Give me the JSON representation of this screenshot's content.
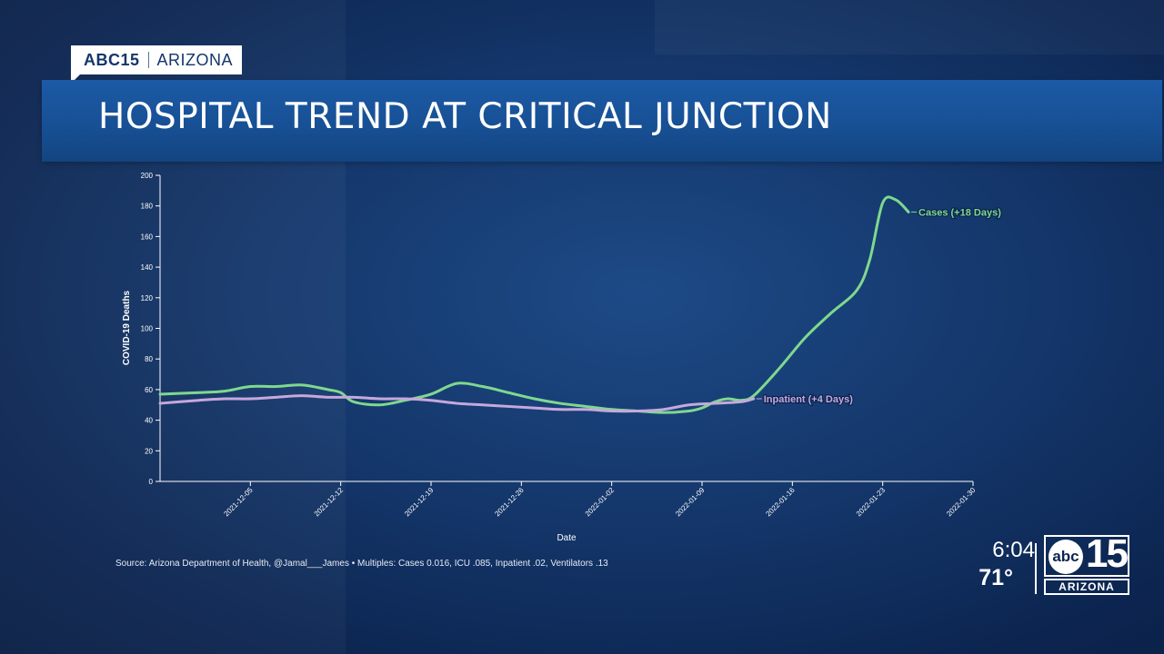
{
  "network_bug": {
    "brand": "ABC15",
    "region": "ARIZONA"
  },
  "headline": "HOSPITAL TREND AT CRITICAL JUNCTION",
  "chart_data": {
    "type": "line",
    "xlabel": "Date",
    "ylabel": "COVID-19 Deaths",
    "ylim": [
      0,
      200
    ],
    "yticks": [
      0,
      20,
      40,
      60,
      80,
      100,
      120,
      140,
      160,
      180,
      200
    ],
    "xticks": [
      "2021-12-05",
      "2021-12-12",
      "2021-12-19",
      "2021-12-26",
      "2022-01-02",
      "2022-01-09",
      "2022-01-16",
      "2022-01-23",
      "2022-01-30"
    ],
    "xlim": [
      "2021-11-28",
      "2022-01-30"
    ],
    "grid": false,
    "series": [
      {
        "name": "Cases (+18 Days)",
        "color": "#7fd88f",
        "points": [
          [
            "2021-11-28",
            57
          ],
          [
            "2021-12-01",
            58
          ],
          [
            "2021-12-03",
            59
          ],
          [
            "2021-12-05",
            62
          ],
          [
            "2021-12-07",
            62
          ],
          [
            "2021-12-09",
            63
          ],
          [
            "2021-12-11",
            60
          ],
          [
            "2021-12-12",
            58
          ],
          [
            "2021-12-13",
            52
          ],
          [
            "2021-12-15",
            50
          ],
          [
            "2021-12-17",
            53
          ],
          [
            "2021-12-19",
            57
          ],
          [
            "2021-12-21",
            64
          ],
          [
            "2021-12-23",
            62
          ],
          [
            "2021-12-25",
            58
          ],
          [
            "2021-12-27",
            54
          ],
          [
            "2021-12-29",
            51
          ],
          [
            "2021-12-31",
            49
          ],
          [
            "2022-01-02",
            47
          ],
          [
            "2022-01-04",
            46
          ],
          [
            "2022-01-06",
            45
          ],
          [
            "2022-01-08",
            46
          ],
          [
            "2022-01-09",
            48
          ],
          [
            "2022-01-10",
            52
          ],
          [
            "2022-01-11",
            54
          ],
          [
            "2022-01-12",
            53
          ],
          [
            "2022-01-13",
            56
          ],
          [
            "2022-01-15",
            74
          ],
          [
            "2022-01-17",
            94
          ],
          [
            "2022-01-19",
            110
          ],
          [
            "2022-01-21",
            125
          ],
          [
            "2022-01-22",
            145
          ],
          [
            "2022-01-23",
            182
          ],
          [
            "2022-01-24",
            184
          ],
          [
            "2022-01-25",
            176
          ]
        ],
        "label": "Cases (+18 Days)"
      },
      {
        "name": "Inpatient (+4 Days)",
        "color": "#c6a8dc",
        "points": [
          [
            "2021-11-28",
            51
          ],
          [
            "2021-12-01",
            53
          ],
          [
            "2021-12-03",
            54
          ],
          [
            "2021-12-05",
            54
          ],
          [
            "2021-12-07",
            55
          ],
          [
            "2021-12-09",
            56
          ],
          [
            "2021-12-11",
            55
          ],
          [
            "2021-12-13",
            55
          ],
          [
            "2021-12-15",
            54
          ],
          [
            "2021-12-17",
            54
          ],
          [
            "2021-12-19",
            53
          ],
          [
            "2021-12-21",
            51
          ],
          [
            "2021-12-23",
            50
          ],
          [
            "2021-12-25",
            49
          ],
          [
            "2021-12-27",
            48
          ],
          [
            "2021-12-29",
            47
          ],
          [
            "2021-12-31",
            47
          ],
          [
            "2022-01-02",
            46
          ],
          [
            "2022-01-04",
            46
          ],
          [
            "2022-01-06",
            47
          ],
          [
            "2022-01-08",
            50
          ],
          [
            "2022-01-10",
            51
          ],
          [
            "2022-01-12",
            52
          ],
          [
            "2022-01-13",
            54
          ]
        ],
        "label": "Inpatient (+4 Days)"
      }
    ]
  },
  "source_text": "Source: Arizona Department of Health, @Jamal___James • Multiples: Cases 0.016, ICU .085, Inpatient .02, Ventilators .13",
  "clock": {
    "time": "6:04",
    "temperature": "71°"
  },
  "station_logo": {
    "abc": "abc",
    "number": "15",
    "region": "ARIZONA"
  }
}
